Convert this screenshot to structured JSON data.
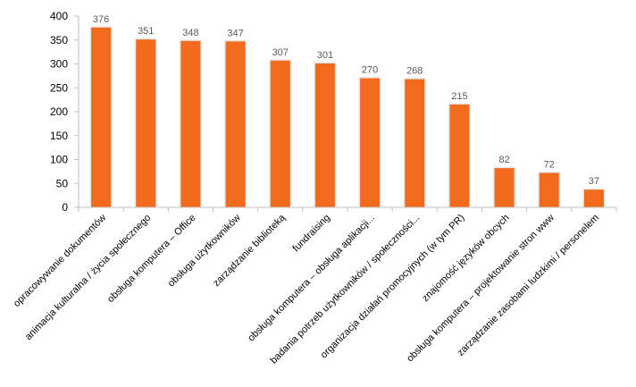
{
  "chart_data": {
    "type": "bar",
    "title": "",
    "xlabel": "",
    "ylabel": "",
    "ylim": [
      0,
      400
    ],
    "yticks": [
      0,
      50,
      100,
      150,
      200,
      250,
      300,
      350,
      400
    ],
    "grid": false,
    "legend": "none",
    "colors": {
      "bar": "#F26B1D",
      "bar_edge": "#E7E7E7",
      "axis": "#BFBFBF",
      "label": "#595959"
    },
    "categories": [
      "opracowywanie dokumentów",
      "animacja kulturalna / życia społecznego",
      "obsługa komputera – Office",
      "obsługa użytkowników",
      "zarządzanie biblioteką",
      "fundraising",
      "obsługa komputera – obsługa aplikacji...",
      "badania potrzeb użytkowników / społeczności...",
      "organizacja działań promocyjnych (w tym PR)",
      "znajomość języków obcych",
      "obsługa komputera – projektowanie stron www",
      "zarządzanie zasobami ludzkimi / personelem"
    ],
    "values": [
      376,
      351,
      348,
      347,
      307,
      301,
      270,
      268,
      215,
      82,
      72,
      37
    ]
  }
}
